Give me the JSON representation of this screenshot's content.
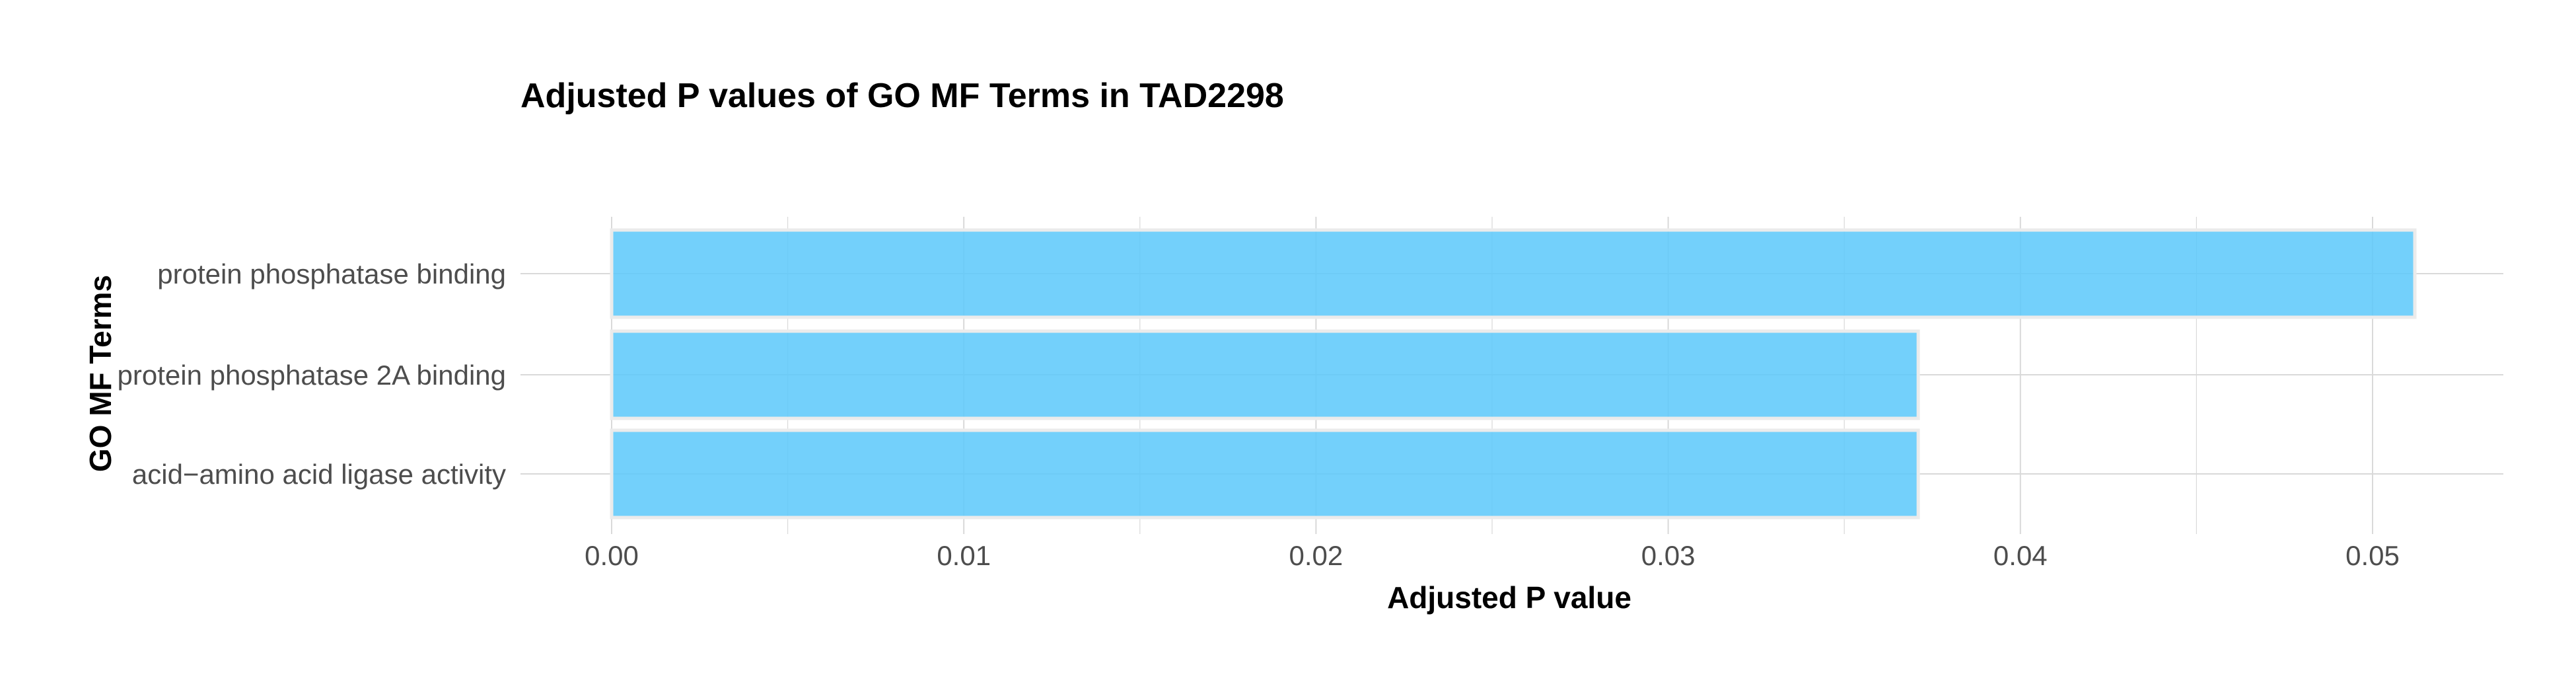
{
  "chart_data": {
    "type": "bar",
    "orientation": "horizontal",
    "title": "Adjusted P values of GO MF Terms in TAD2298",
    "xlabel": "Adjusted P value",
    "ylabel": "GO MF Terms",
    "categories": [
      "protein phosphatase binding",
      "protein phosphatase 2A binding",
      "acid−amino acid ligase activity"
    ],
    "values": [
      0.0512,
      0.0371,
      0.0371
    ],
    "xlim": [
      0,
      0.0538
    ],
    "x_ticks": [
      0.0,
      0.01,
      0.02,
      0.03,
      0.04,
      0.05
    ],
    "x_tick_labels": [
      "0.00",
      "0.01",
      "0.02",
      "0.03",
      "0.04",
      "0.05"
    ],
    "grid": true,
    "legend": "none",
    "bar_color": "#5bc8fa",
    "bar_outline_color": "#ebebeb"
  }
}
